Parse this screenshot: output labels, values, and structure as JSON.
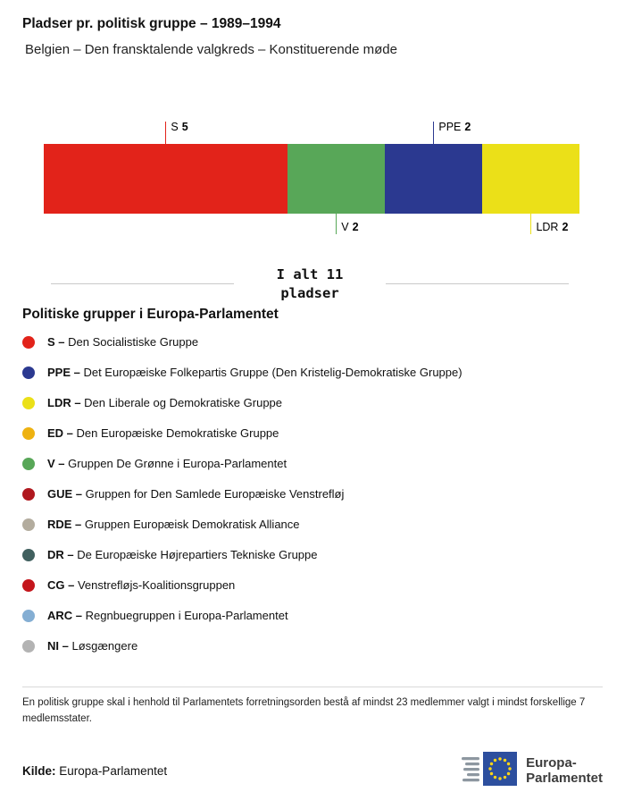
{
  "header": {
    "title": "Pladser pr. politisk gruppe – 1989–1994",
    "subtitle": "Belgien – Den fransktalende valgkreds – Konstituerende møde"
  },
  "chart_data": {
    "type": "bar",
    "stacked": true,
    "orientation": "horizontal",
    "title": "Pladser pr. politisk gruppe – 1989–1994",
    "subtitle": "Belgien – Den fransktalende valgkreds – Konstituerende møde",
    "total": 11,
    "total_line1": "I alt 11",
    "total_line2": "pladser",
    "segments": [
      {
        "code": "S",
        "value": 5,
        "color": "#e2231a",
        "label_position": "top"
      },
      {
        "code": "V",
        "value": 2,
        "color": "#58a758",
        "label_position": "bottom"
      },
      {
        "code": "PPE",
        "value": 2,
        "color": "#2b3990",
        "label_position": "top"
      },
      {
        "code": "LDR",
        "value": 2,
        "color": "#ebe018",
        "label_position": "bottom"
      }
    ]
  },
  "legend": {
    "heading": "Politiske grupper i Europa-Parlamentet",
    "items": [
      {
        "abbr": "S –",
        "name": "Den Socialistiske Gruppe",
        "color": "#e2231a"
      },
      {
        "abbr": "PPE –",
        "name": "Det Europæiske Folkepartis Gruppe (Den Kristelig-Demokratiske Gruppe)",
        "color": "#2b3990"
      },
      {
        "abbr": "LDR –",
        "name": "Den Liberale og Demokratiske Gruppe",
        "color": "#ebe018"
      },
      {
        "abbr": "ED –",
        "name": "Den Europæiske Demokratiske Gruppe",
        "color": "#eeb211"
      },
      {
        "abbr": "V –",
        "name": "Gruppen De Grønne i Europa-Parlamentet",
        "color": "#58a758"
      },
      {
        "abbr": "GUE –",
        "name": "Gruppen for Den Samlede Europæiske Venstrefløj",
        "color": "#b0181f"
      },
      {
        "abbr": "RDE –",
        "name": "Gruppen Europæisk Demokratisk Alliance",
        "color": "#b3ac9e"
      },
      {
        "abbr": "DR –",
        "name": "De Europæiske Højrepartiers Tekniske Gruppe",
        "color": "#41605f"
      },
      {
        "abbr": "CG –",
        "name": "Venstrefløjs-Koalitionsgruppen",
        "color": "#c4161c"
      },
      {
        "abbr": "ARC –",
        "name": "Regnbuegruppen i Europa-Parlamentet",
        "color": "#84aed3"
      },
      {
        "abbr": "NI –",
        "name": "Løsgængere",
        "color": "#b3b3b3"
      }
    ]
  },
  "footer": {
    "note": "En politisk gruppe skal i henhold til Parlamentets forretningsorden bestå af mindst 23 medlemmer valgt i mindst forskellige 7 medlemsstater.",
    "source_label": "Kilde:",
    "source": "Europa-Parlamentet",
    "logo_line1": "Europa-",
    "logo_line2": "Parlamentet"
  }
}
